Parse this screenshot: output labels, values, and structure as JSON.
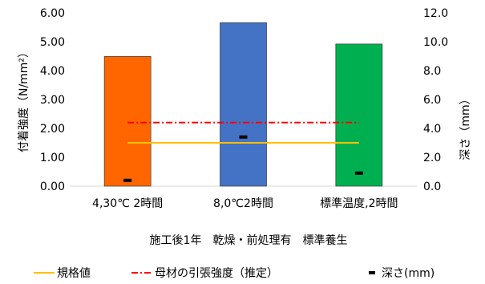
{
  "chart_data": {
    "type": "bar",
    "subtitle": "施工後1年　乾燥・前処理有　標準養生",
    "categories": [
      "4,30℃ 2時間",
      "8,0℃2時間",
      "標準温度,2時間"
    ],
    "bar_colors": [
      "#FF6600",
      "#4472C4",
      "#00B050"
    ],
    "values": [
      4.49,
      5.66,
      4.92
    ],
    "y_left": {
      "label": "付着強度（N/mm²）",
      "ylim": [
        0,
        6
      ],
      "ticks": [
        0,
        1,
        2,
        3,
        4,
        5,
        6
      ],
      "tick_labels": [
        "0.00",
        "1.00",
        "2.00",
        "3.00",
        "4.00",
        "5.00",
        "6.00"
      ]
    },
    "y_right": {
      "label": "深さ（mm）",
      "ylim": [
        0,
        12
      ],
      "ticks": [
        0,
        2,
        4,
        6,
        8,
        10,
        12
      ],
      "tick_labels": [
        "0.0",
        "2.0",
        "4.0",
        "6.0",
        "8.0",
        "10.0",
        "12.0"
      ]
    },
    "series": [
      {
        "name": "規格値",
        "type": "line",
        "axis": "left",
        "color": "#FFC000",
        "style": "solid",
        "values": [
          1.5,
          1.5,
          1.5
        ]
      },
      {
        "name": "母材の引張強度（推定）",
        "type": "line",
        "axis": "left",
        "color": "#FF0000",
        "style": "dashdot",
        "values": [
          2.2,
          2.2,
          2.2
        ]
      },
      {
        "name": "深さ(mm)",
        "type": "marker",
        "axis": "right",
        "color": "#000000",
        "values": [
          0.4,
          3.4,
          0.9
        ]
      }
    ],
    "grid": false,
    "legend_position": "bottom"
  }
}
